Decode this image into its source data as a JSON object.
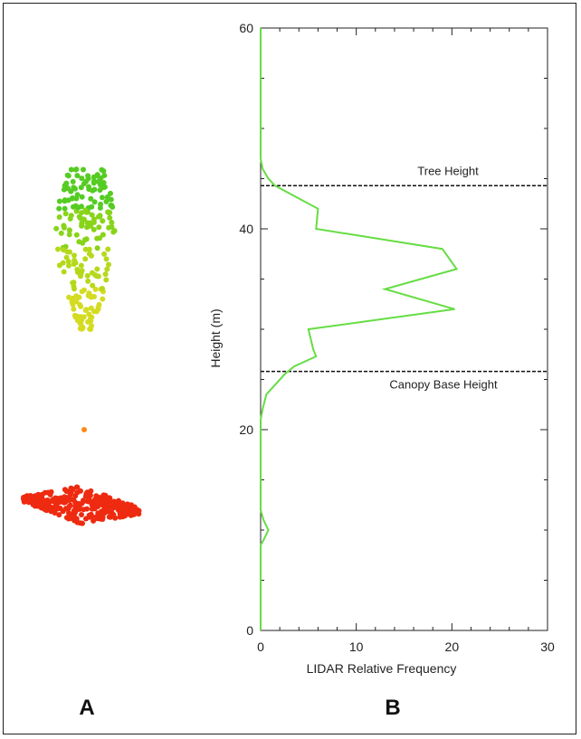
{
  "panels": {
    "a_label": "A",
    "b_label": "B"
  },
  "colors": {
    "profile_line": "#66dd44",
    "crown_points": [
      "#55cc22",
      "#88d41a",
      "#b5d91a",
      "#d4dc22"
    ],
    "ground_points": "#ee2a10",
    "mid_point": "#ff8a1a"
  },
  "point_cloud": {
    "description_units": "m",
    "crown_height_range": [
      30,
      46
    ],
    "ground_height_range": [
      11,
      14
    ],
    "isolated_point_height": 20
  },
  "chart_data": {
    "type": "line",
    "orientation": "horizontal-profile",
    "xlabel": "LIDAR Relative Frequency",
    "ylabel": "Height (m)",
    "xlim": [
      0,
      30
    ],
    "ylim": [
      0,
      60
    ],
    "x_ticks": [
      0,
      10,
      20,
      30
    ],
    "y_ticks": [
      0,
      20,
      40,
      60
    ],
    "x_tick_labels": [
      "0",
      "10",
      "20",
      "30"
    ],
    "y_tick_labels": [
      "0",
      "20",
      "40",
      "60"
    ],
    "grid": false,
    "series": [
      {
        "points": [
          [
            0,
            60
          ],
          [
            0,
            50
          ],
          [
            0,
            47
          ],
          [
            0.2,
            46
          ],
          [
            0.8,
            45
          ],
          [
            1.5,
            44.3
          ],
          [
            6.0,
            42
          ],
          [
            5.8,
            40
          ],
          [
            19,
            38
          ],
          [
            20.5,
            36
          ],
          [
            13,
            34
          ],
          [
            20.3,
            32
          ],
          [
            5.0,
            30
          ],
          [
            5.5,
            28
          ],
          [
            5.8,
            27.3
          ],
          [
            3.5,
            26.3
          ],
          [
            2.5,
            25.5
          ],
          [
            0.6,
            23.5
          ],
          [
            0.2,
            22
          ],
          [
            0,
            21
          ],
          [
            0,
            12
          ],
          [
            0.3,
            11
          ],
          [
            0.8,
            10
          ],
          [
            0.3,
            9
          ],
          [
            0,
            8.5
          ],
          [
            0,
            0
          ]
        ]
      }
    ],
    "annotations": [
      {
        "text": "Tree Height",
        "y": 44.3
      },
      {
        "text": "Canopy Base Height",
        "y": 25.8
      }
    ]
  }
}
